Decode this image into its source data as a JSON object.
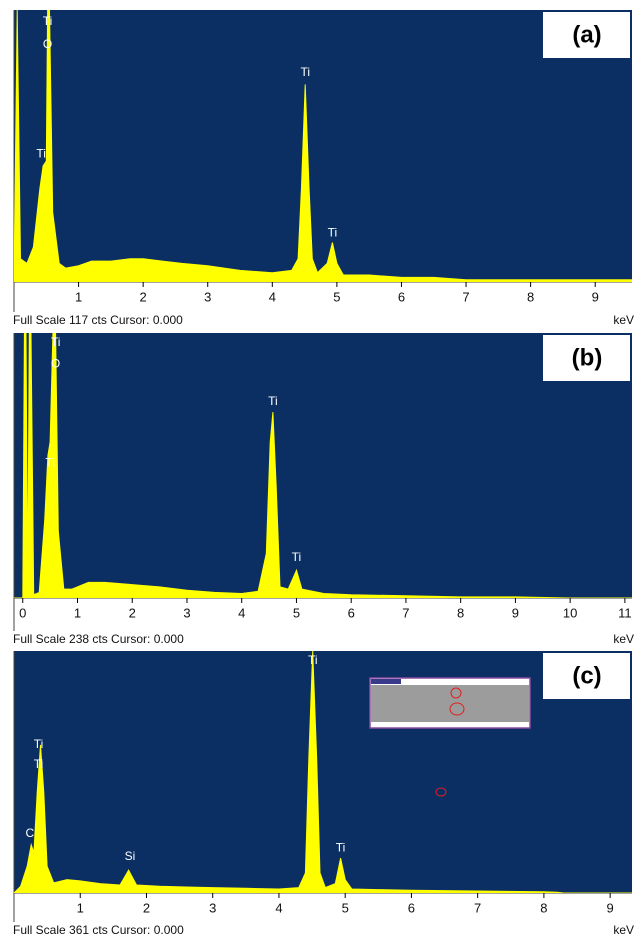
{
  "chart_data": [
    {
      "type": "area",
      "title": "(a)",
      "footer": "Full Scale 117 cts Cursor: 0.000",
      "x_label": "keV",
      "color": "#ffff00",
      "x": [
        0,
        0.05,
        0.1,
        0.2,
        0.3,
        0.4,
        0.45,
        0.5,
        0.52,
        0.55,
        0.6,
        0.7,
        0.8,
        1.0,
        1.2,
        1.5,
        1.8,
        2.0,
        2.3,
        2.6,
        3.0,
        3.5,
        4.0,
        4.3,
        4.4,
        4.45,
        4.51,
        4.57,
        4.62,
        4.7,
        4.85,
        4.93,
        5.0,
        5.1,
        5.5,
        6.0,
        6.5,
        7.0,
        8.0,
        9.0,
        9.57
      ],
      "values": [
        0,
        117,
        10,
        8,
        15,
        40,
        50,
        52,
        117,
        117,
        30,
        8,
        6,
        7,
        9,
        9,
        10,
        10,
        9,
        8,
        7,
        5,
        4,
        5,
        10,
        40,
        85,
        40,
        10,
        4,
        8,
        17,
        8,
        3,
        3,
        2,
        2,
        1,
        1,
        1,
        1
      ],
      "xlim": [
        0,
        9.57
      ],
      "xticks": [
        1,
        2,
        3,
        4,
        5,
        6,
        7,
        8,
        9
      ],
      "ylim": [
        0,
        117
      ],
      "annotations": [
        {
          "text": "Ti",
          "x": 0.52,
          "y": 112
        },
        {
          "text": "O",
          "x": 0.52,
          "y": 102
        },
        {
          "text": "Ti",
          "x": 0.42,
          "y": 55
        },
        {
          "text": "Ti",
          "x": 4.51,
          "y": 90
        },
        {
          "text": "Ti",
          "x": 4.93,
          "y": 21
        }
      ]
    },
    {
      "type": "area",
      "title": "(b)",
      "footer": "Full Scale 238 cts Cursor: 0.000",
      "x_label": "keV",
      "color": "#ffff00",
      "x": [
        -0.16,
        -0.05,
        0.0,
        0.03,
        0.06,
        0.09,
        0.12,
        0.15,
        0.2,
        0.3,
        0.4,
        0.46,
        0.5,
        0.55,
        0.6,
        0.65,
        0.75,
        0.9,
        1.2,
        1.5,
        2.0,
        2.5,
        3.0,
        3.5,
        4.0,
        4.3,
        4.45,
        4.52,
        4.57,
        4.63,
        4.7,
        4.85,
        5.0,
        5.1,
        5.5,
        6.0,
        7.0,
        8.0,
        9.0,
        10.0,
        11.13
      ],
      "values": [
        0,
        0,
        0,
        238,
        238,
        5,
        238,
        238,
        3,
        5,
        70,
        128,
        140,
        238,
        238,
        60,
        8,
        8,
        14,
        14,
        12,
        10,
        7,
        5,
        4,
        6,
        40,
        140,
        167,
        100,
        10,
        8,
        25,
        8,
        4,
        3,
        2,
        1,
        1,
        0,
        0
      ],
      "xlim": [
        -0.16,
        11.13
      ],
      "xticks": [
        0,
        1,
        2,
        3,
        4,
        5,
        6,
        7,
        8,
        9,
        10,
        11
      ],
      "ylim": [
        0,
        238
      ],
      "annotations": [
        {
          "text": "Ti",
          "x": 0.6,
          "y": 229
        },
        {
          "text": "O",
          "x": 0.6,
          "y": 210
        },
        {
          "text": "Ti",
          "x": 0.5,
          "y": 121
        },
        {
          "text": "Ti",
          "x": 4.57,
          "y": 176
        },
        {
          "text": "Ti",
          "x": 5.0,
          "y": 36
        }
      ]
    },
    {
      "type": "area",
      "title": "(c)",
      "footer": "Full Scale 361 cts Cursor: 0.000",
      "x_label": "keV",
      "color": "#ffff00",
      "x": [
        0,
        0.1,
        0.2,
        0.26,
        0.3,
        0.35,
        0.4,
        0.45,
        0.5,
        0.6,
        0.8,
        1.0,
        1.3,
        1.6,
        1.73,
        1.85,
        2.2,
        2.6,
        3.0,
        3.5,
        4.0,
        4.3,
        4.4,
        4.45,
        4.51,
        4.57,
        4.62,
        4.7,
        4.85,
        4.93,
        5.0,
        5.1,
        5.5,
        6.0,
        7.0,
        8.0,
        8.2,
        8.3,
        9.33
      ],
      "values": [
        0,
        10,
        40,
        72,
        60,
        150,
        221,
        150,
        40,
        15,
        20,
        18,
        14,
        12,
        34,
        12,
        10,
        9,
        8,
        7,
        6,
        8,
        30,
        200,
        361,
        200,
        30,
        8,
        14,
        52,
        20,
        6,
        5,
        4,
        3,
        2,
        1,
        0,
        0
      ],
      "xlim": [
        0,
        9.33
      ],
      "xticks": [
        1,
        2,
        3,
        4,
        5,
        6,
        7,
        8,
        9
      ],
      "ylim": [
        0,
        361
      ],
      "annotations": [
        {
          "text": "Ti",
          "x": 4.51,
          "y": 346
        },
        {
          "text": "Ti",
          "x": 0.37,
          "y": 221
        },
        {
          "text": "Ti",
          "x": 0.37,
          "y": 191
        },
        {
          "text": "C",
          "x": 0.24,
          "y": 88
        },
        {
          "text": "Si",
          "x": 1.75,
          "y": 54
        },
        {
          "text": "Ti",
          "x": 4.93,
          "y": 67
        }
      ]
    }
  ]
}
